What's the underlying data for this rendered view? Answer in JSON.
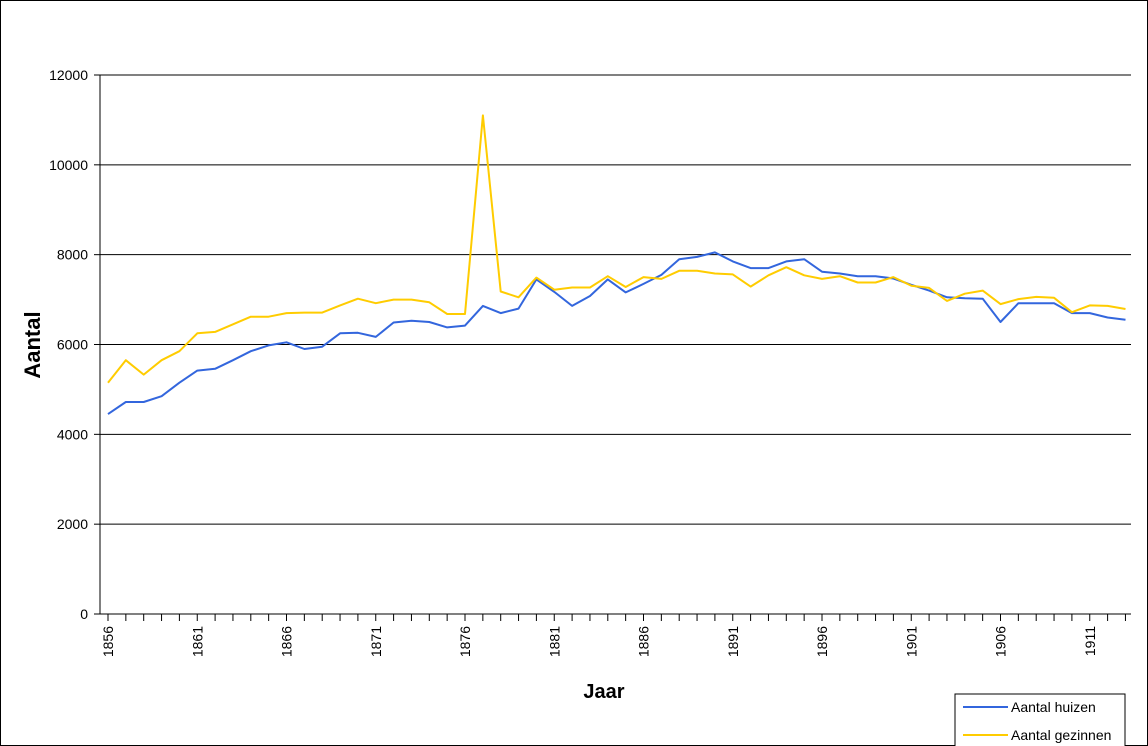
{
  "chart_data": {
    "type": "line",
    "xlabel": "Jaar",
    "ylabel": "Aantal",
    "ylim": [
      0,
      12000
    ],
    "yticks": [
      "0",
      "2000",
      "4000",
      "6000",
      "8000",
      "10000",
      "12000"
    ],
    "xticks": [
      "1856",
      "1861",
      "1866",
      "1871",
      "1876",
      "1881",
      "1886",
      "1891",
      "1896",
      "1901",
      "1906",
      "1911"
    ],
    "x": [
      1856,
      1857,
      1858,
      1859,
      1860,
      1861,
      1862,
      1863,
      1864,
      1865,
      1866,
      1867,
      1868,
      1869,
      1870,
      1871,
      1872,
      1873,
      1874,
      1875,
      1876,
      1877,
      1878,
      1879,
      1880,
      1881,
      1882,
      1883,
      1884,
      1885,
      1886,
      1887,
      1888,
      1889,
      1890,
      1891,
      1892,
      1893,
      1894,
      1895,
      1896,
      1897,
      1898,
      1899,
      1900,
      1901,
      1902,
      1903,
      1904,
      1905,
      1906,
      1907,
      1908,
      1909,
      1910,
      1911,
      1912,
      1913
    ],
    "grid": true,
    "legend_position": "bottom-right",
    "series": [
      {
        "name": "Aantal huizen",
        "color": "#3366dd",
        "values": [
          4450,
          4720,
          4720,
          4850,
          5150,
          5420,
          5460,
          5650,
          5850,
          5980,
          6050,
          5900,
          5950,
          6250,
          6260,
          6170,
          6490,
          6530,
          6500,
          6380,
          6420,
          6860,
          6700,
          6800,
          7450,
          7170,
          6860,
          7080,
          7450,
          7160,
          7350,
          7550,
          7900,
          7950,
          8050,
          7850,
          7700,
          7700,
          7850,
          7900,
          7620,
          7580,
          7520,
          7520,
          7470,
          7330,
          7200,
          7050,
          7030,
          7020,
          6500,
          6920,
          6920,
          6920,
          6700,
          6700,
          6600,
          6550
        ],
        "_note_": ""
      },
      {
        "name": "Aantal gezinnen",
        "color": "#ffcc00",
        "values": [
          5150,
          5650,
          5330,
          5650,
          5850,
          6250,
          6280,
          6450,
          6620,
          6620,
          6700,
          6710,
          6710,
          6870,
          7020,
          6920,
          7000,
          7000,
          6940,
          6680,
          6680,
          11100,
          7180,
          7050,
          7490,
          7220,
          7270,
          7270,
          7520,
          7280,
          7500,
          7460,
          7640,
          7640,
          7580,
          7560,
          7290,
          7540,
          7720,
          7540,
          7460,
          7520,
          7380,
          7380,
          7500,
          7310,
          7260,
          6970,
          7130,
          7200,
          6900,
          7010,
          7060,
          7040,
          6720,
          6870,
          6860,
          6790
        ]
      }
    ]
  }
}
